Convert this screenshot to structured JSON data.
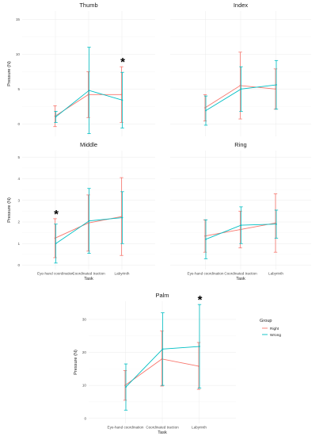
{
  "colors": {
    "right": "#F8766D",
    "wrong": "#00BFC4"
  },
  "legend": {
    "title": "Group",
    "items": [
      {
        "label": "Right",
        "color": "#F8766D"
      },
      {
        "label": "Wrong",
        "color": "#00BFC4"
      }
    ]
  },
  "chart_data": [
    {
      "type": "line",
      "title": "Thumb",
      "ylabel": "Pressure (N)",
      "xlabel": "",
      "ylim": [
        -1.8,
        16.2
      ],
      "yticks": [
        0,
        5,
        10,
        15
      ],
      "categories": [
        "Eye-hand coordination",
        "Coordinated traction",
        "Labyrinth"
      ],
      "show_x_ticks": false,
      "show_y_ticks": true,
      "significance": [
        "",
        "",
        "*"
      ],
      "series": [
        {
          "name": "Right",
          "color": "#F8766D",
          "values": [
            1.1,
            4.2,
            4.2
          ],
          "upper": [
            2.6,
            7.5,
            8.2
          ],
          "lower": [
            -0.4,
            0.9,
            0.2
          ]
        },
        {
          "name": "Wrong",
          "color": "#00BFC4",
          "values": [
            1.0,
            4.8,
            3.4
          ],
          "upper": [
            1.8,
            11.0,
            7.4
          ],
          "lower": [
            0.2,
            -1.4,
            -0.6
          ]
        }
      ]
    },
    {
      "type": "line",
      "title": "Index",
      "ylabel": "",
      "xlabel": "",
      "ylim": [
        -1.8,
        16.2
      ],
      "yticks": [
        0,
        5,
        10,
        15
      ],
      "categories": [
        "Eye-hand coordination",
        "Coordinated traction",
        "Labyrinth"
      ],
      "show_x_ticks": false,
      "show_y_ticks": false,
      "significance": [
        "",
        "",
        ""
      ],
      "series": [
        {
          "name": "Right",
          "color": "#F8766D",
          "values": [
            2.3,
            5.5,
            5.0
          ],
          "upper": [
            4.2,
            10.3,
            7.9
          ],
          "lower": [
            0.4,
            0.7,
            2.1
          ]
        },
        {
          "name": "Wrong",
          "color": "#00BFC4",
          "values": [
            1.9,
            5.0,
            5.6
          ],
          "upper": [
            4.0,
            8.2,
            9.1
          ],
          "lower": [
            -0.2,
            1.8,
            2.1
          ]
        }
      ]
    },
    {
      "type": "line",
      "title": "Middle",
      "ylabel": "Pressure (N)",
      "xlabel": "Task",
      "ylim": [
        -0.2,
        5.3
      ],
      "yticks": [
        0,
        1,
        2,
        3,
        4,
        5
      ],
      "categories": [
        "Eye-hand coordination",
        "Coordinated traction",
        "Labyrinth"
      ],
      "show_x_ticks": true,
      "show_y_ticks": true,
      "significance": [
        "*",
        "",
        ""
      ],
      "series": [
        {
          "name": "Right",
          "color": "#F8766D",
          "values": [
            1.25,
            1.95,
            2.25
          ],
          "upper": [
            2.15,
            3.25,
            4.05
          ],
          "lower": [
            0.35,
            0.65,
            0.45
          ]
        },
        {
          "name": "Wrong",
          "color": "#00BFC4",
          "values": [
            1.0,
            2.05,
            2.2
          ],
          "upper": [
            1.9,
            3.55,
            3.4
          ],
          "lower": [
            0.1,
            0.55,
            1.0
          ]
        }
      ]
    },
    {
      "type": "line",
      "title": "Ring",
      "ylabel": "",
      "xlabel": "Task",
      "ylim": [
        -0.2,
        5.3
      ],
      "yticks": [
        0,
        1,
        2,
        3,
        4,
        5
      ],
      "categories": [
        "Eye-hand coordination",
        "Coordinated traction",
        "Labyrinth"
      ],
      "show_x_ticks": true,
      "show_y_ticks": false,
      "significance": [
        "",
        "",
        ""
      ],
      "series": [
        {
          "name": "Right",
          "color": "#F8766D",
          "values": [
            1.35,
            1.65,
            1.95
          ],
          "upper": [
            2.1,
            2.5,
            3.3
          ],
          "lower": [
            0.6,
            0.8,
            0.6
          ]
        },
        {
          "name": "Wrong",
          "color": "#00BFC4",
          "values": [
            1.2,
            1.85,
            1.9
          ],
          "upper": [
            2.1,
            2.7,
            2.55
          ],
          "lower": [
            0.3,
            1.0,
            1.25
          ]
        }
      ]
    },
    {
      "type": "line",
      "title": "Palm",
      "ylabel": "Pressure (N)",
      "xlabel": "Task",
      "ylim": [
        -1.5,
        35.5
      ],
      "yticks": [
        0,
        10,
        20,
        30
      ],
      "categories": [
        "Eye-hand coordination",
        "Coordinated traction",
        "Labyrinth"
      ],
      "show_x_ticks": true,
      "show_y_ticks": true,
      "significance": [
        "",
        "",
        "*"
      ],
      "series": [
        {
          "name": "Right",
          "color": "#F8766D",
          "values": [
            10.0,
            18.0,
            15.8
          ],
          "upper": [
            14.5,
            26.5,
            23.0
          ],
          "lower": [
            5.5,
            9.8,
            8.8
          ]
        },
        {
          "name": "Wrong",
          "color": "#00BFC4",
          "values": [
            9.5,
            21.0,
            21.8
          ],
          "upper": [
            16.5,
            32.0,
            34.5
          ],
          "lower": [
            2.5,
            10.0,
            9.2
          ]
        }
      ]
    }
  ]
}
